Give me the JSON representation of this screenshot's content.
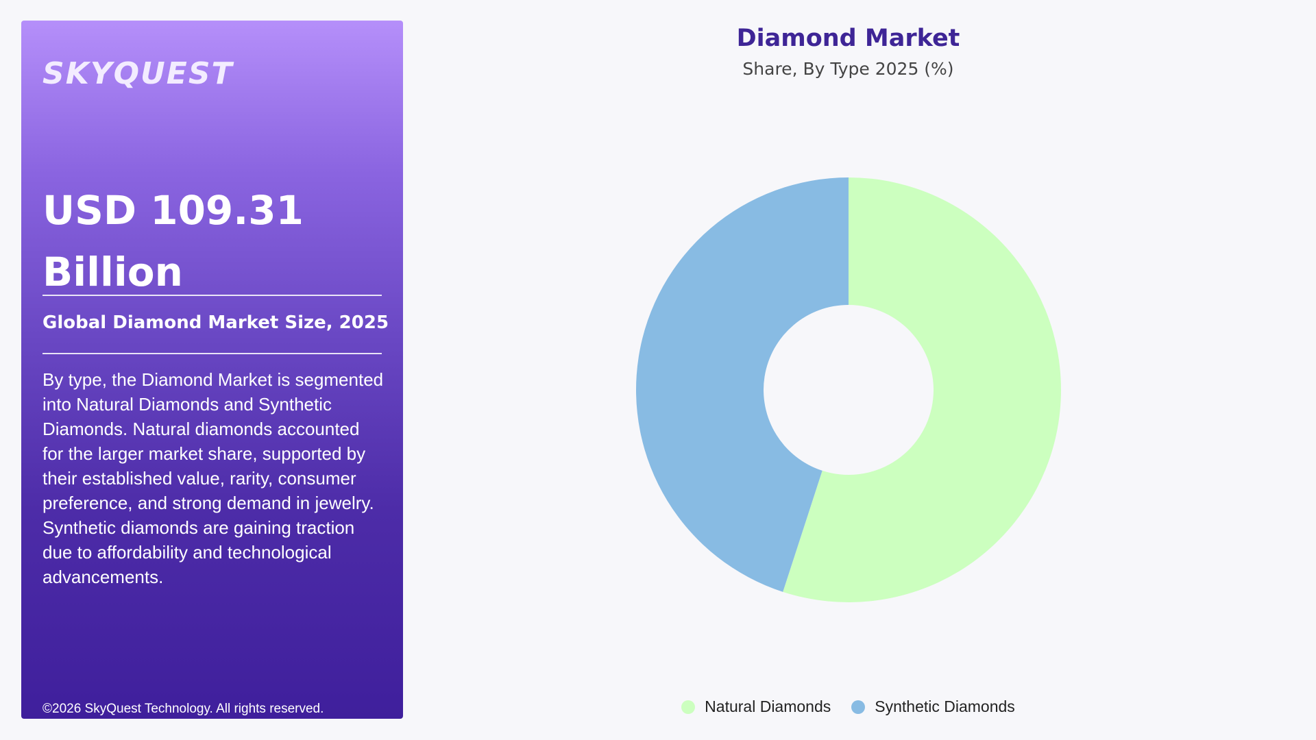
{
  "panel": {
    "logo_text": "SKYQUEST",
    "market_size": "USD 109.31 Billion",
    "size_label": "Global Diamond Market Size, 2025",
    "description": "By type, the Diamond Market is segmented into Natural Diamonds and Synthetic Diamonds. Natural diamonds accounted for the larger market share, supported by their established value, rarity, consumer preference, and strong demand in jewelry. Synthetic diamonds are gaining traction due to affordability and technological advancements.",
    "copyright": "©2026 SkyQuest Technology. All rights reserved."
  },
  "colors": {
    "panel_gradient_top": "#b58ffa",
    "panel_gradient_bottom": "#3f1f9c",
    "title": "#3e2596",
    "natural": "#ccffbf",
    "synthetic": "#88bbe3"
  },
  "chart_data": {
    "type": "pie",
    "variant": "donut",
    "title": "Diamond Market",
    "subtitle": "Share, By Type 2025 (%)",
    "categories": [
      "Natural Diamonds",
      "Synthetic Diamonds"
    ],
    "values": [
      55,
      45
    ],
    "colors": [
      "#ccffbf",
      "#88bbe3"
    ],
    "legend_position": "bottom"
  }
}
